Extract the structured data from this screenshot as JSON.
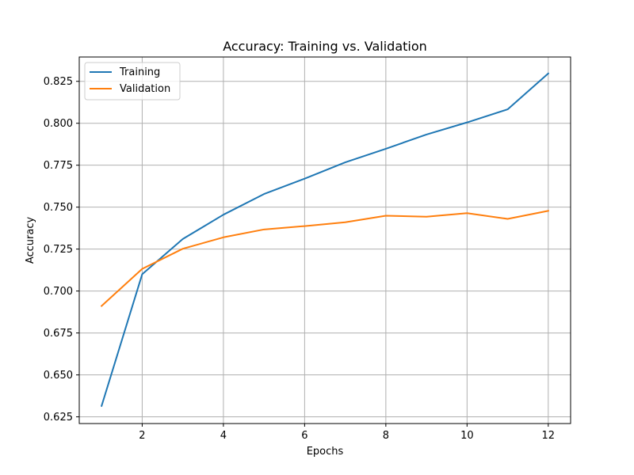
{
  "chart_data": {
    "type": "line",
    "title": "Accuracy: Training vs. Validation",
    "xlabel": "Epochs",
    "ylabel": "Accuracy",
    "x": [
      1,
      2,
      3,
      4,
      5,
      6,
      7,
      8,
      9,
      10,
      11,
      12
    ],
    "xlim": [
      0.45,
      12.55
    ],
    "ylim": [
      0.621,
      0.8395
    ],
    "xticks": [
      2,
      4,
      6,
      8,
      10,
      12
    ],
    "xtick_labels": [
      "2",
      "4",
      "6",
      "8",
      "10",
      "12"
    ],
    "yticks": [
      0.625,
      0.65,
      0.675,
      0.7,
      0.725,
      0.75,
      0.775,
      0.8,
      0.825
    ],
    "ytick_labels": [
      "0.625",
      "0.650",
      "0.675",
      "0.700",
      "0.725",
      "0.750",
      "0.775",
      "0.800",
      "0.825"
    ],
    "grid": true,
    "legend_position": "upper-left",
    "series": [
      {
        "name": "Training",
        "color": "#1f77b4",
        "values": [
          0.6315,
          0.71,
          0.731,
          0.7455,
          0.7578,
          0.767,
          0.7767,
          0.7848,
          0.7933,
          0.8005,
          0.8083,
          0.8297
        ]
      },
      {
        "name": "Validation",
        "color": "#ff7f0e",
        "values": [
          0.6911,
          0.7132,
          0.7252,
          0.732,
          0.7367,
          0.7387,
          0.741,
          0.7449,
          0.7443,
          0.7464,
          0.743,
          0.7478
        ]
      }
    ]
  }
}
